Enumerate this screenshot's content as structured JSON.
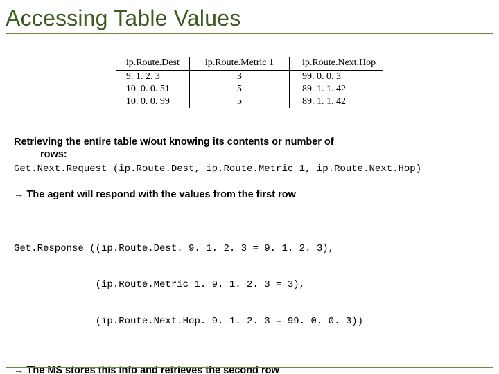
{
  "colors": {
    "rule": "#6a8a3a",
    "title": "#3e5a1f",
    "text": "#000000",
    "background": "#ffffff"
  },
  "title": "Accessing Table Values",
  "route_table": {
    "type": "table",
    "columns": [
      "ip.Route.Dest",
      "ip.Route.Metric 1",
      "ip.Route.Next.Hop"
    ],
    "rows": [
      [
        "9. 1. 2. 3",
        "3",
        "99. 0. 0. 3"
      ],
      [
        "10. 0. 0. 51",
        "5",
        "89. 1. 1. 42"
      ],
      [
        "10. 0. 0. 99",
        "5",
        "89. 1. 1. 42"
      ]
    ],
    "header_fontsize": 14,
    "cell_fontsize": 14,
    "border_color": "#000000"
  },
  "para1_a": "Retrieving the entire table w/out knowing its contents or number of",
  "para1_b": "rows:",
  "code1": "Get.Next.Request (ip.Route.Dest, ip.Route.Metric 1, ip.Route.Next.Hop)",
  "arrow1": "→ The agent will respond with the values from the first row",
  "code2_l1": "Get.Response ((ip.Route.Dest. 9. 1. 2. 3 = 9. 1. 2. 3),",
  "code2_l2": "              (ip.Route.Metric 1. 9. 1. 2. 3 = 3),",
  "code2_l3": "              (ip.Route.Next.Hop. 9. 1. 2. 3 = 99. 0. 0. 3))",
  "arrow2": "→ The MS stores this info and retrieves the second row"
}
